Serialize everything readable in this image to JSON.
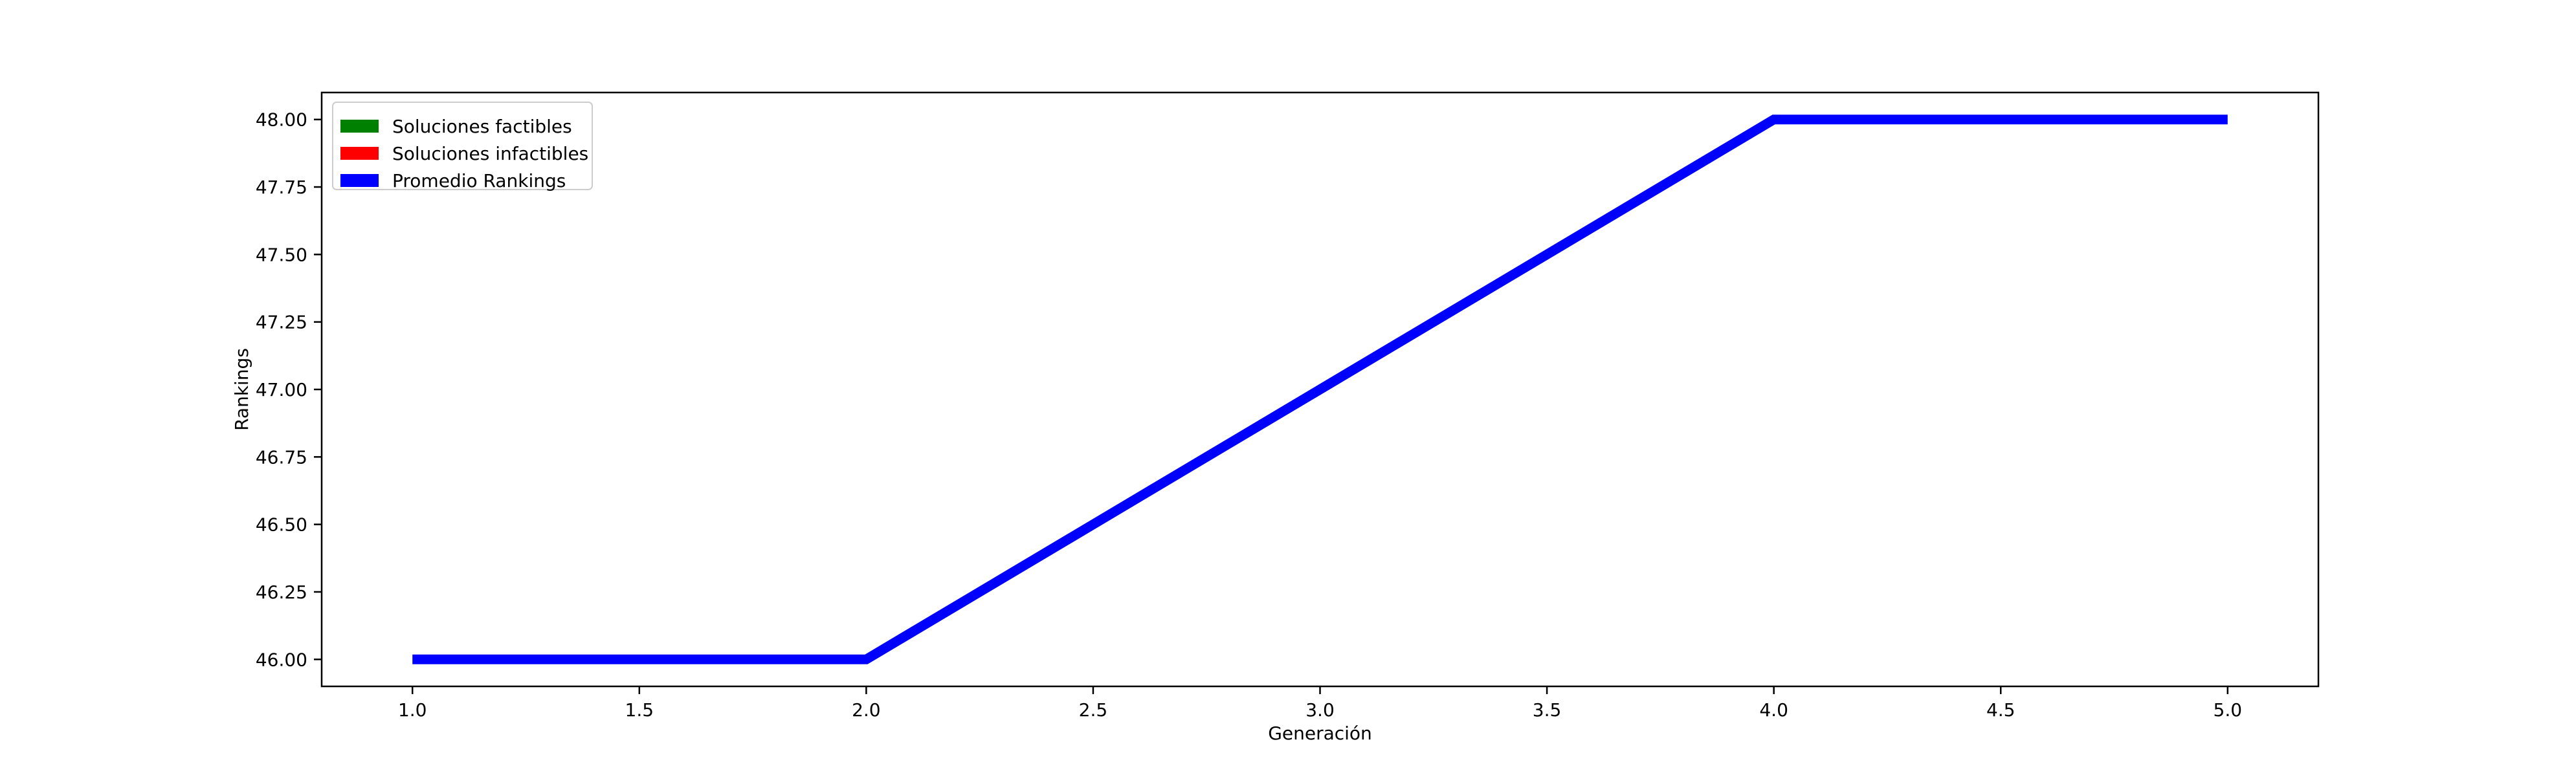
{
  "chart_data": {
    "type": "line",
    "title": "",
    "xlabel": "Generación",
    "ylabel": "Rankings",
    "xlim": [
      0.8,
      5.2
    ],
    "ylim": [
      45.9,
      48.1
    ],
    "x_ticks": [
      1.0,
      1.5,
      2.0,
      2.5,
      3.0,
      3.5,
      4.0,
      4.5,
      5.0
    ],
    "x_tick_labels": [
      "1.0",
      "1.5",
      "2.0",
      "2.5",
      "3.0",
      "3.5",
      "4.0",
      "4.5",
      "5.0"
    ],
    "y_ticks": [
      46.0,
      46.25,
      46.5,
      46.75,
      47.0,
      47.25,
      47.5,
      47.75,
      48.0
    ],
    "y_tick_labels": [
      "46.00",
      "46.25",
      "46.50",
      "46.75",
      "47.00",
      "47.25",
      "47.50",
      "47.75",
      "48.00"
    ],
    "grid": false,
    "legend_position": "top-left",
    "legend": [
      {
        "label": "Soluciones factibles",
        "color": "#008000"
      },
      {
        "label": "Soluciones infactibles",
        "color": "#ff0000"
      },
      {
        "label": "Promedio Rankings",
        "color": "#0000ff"
      }
    ],
    "series": [
      {
        "name": "Promedio Rankings",
        "color": "#0000ff",
        "x": [
          1,
          2,
          3,
          4,
          5
        ],
        "y": [
          46,
          46,
          47,
          48,
          48
        ]
      }
    ]
  }
}
